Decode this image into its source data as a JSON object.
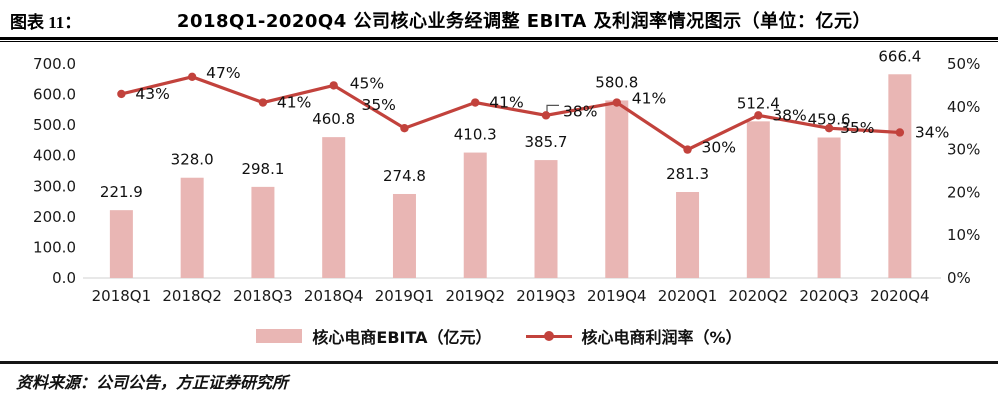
{
  "figure": {
    "label": "图表 11：",
    "title": "2018Q1-2020Q4 公司核心业务经调整 EBITA 及利润率情况图示（单位：亿元）",
    "source": "资料来源：公司公告，方正证券研究所"
  },
  "colors": {
    "bar": "#e9b6b4",
    "line": "#c2423c",
    "axis_line": "#d9d9d9",
    "text": "#1a1a1a"
  },
  "legend": [
    {
      "swatch": "bar",
      "label": "核心电商EBITA（亿元）"
    },
    {
      "swatch": "line",
      "label": "核心电商利润率（%）"
    }
  ],
  "chart_data": {
    "type": "bar+line",
    "title": "2018Q1-2020Q4 公司核心业务经调整 EBITA 及利润率情况图示（单位：亿元）",
    "categories": [
      "2018Q1",
      "2018Q2",
      "2018Q3",
      "2018Q4",
      "2019Q1",
      "2019Q2",
      "2019Q3",
      "2019Q4",
      "2020Q1",
      "2020Q2",
      "2020Q3",
      "2020Q4"
    ],
    "series": [
      {
        "name": "核心电商EBITA（亿元）",
        "type": "bar",
        "axis": "left",
        "values": [
          221.9,
          328.0,
          298.1,
          460.8,
          274.8,
          410.3,
          385.7,
          580.8,
          281.3,
          512.4,
          459.6,
          666.4
        ]
      },
      {
        "name": "核心电商利润率（%）",
        "type": "line",
        "axis": "right",
        "unit": "%",
        "values": [
          43,
          47,
          41,
          45,
          35,
          41,
          38,
          41,
          30,
          38,
          35,
          34
        ]
      }
    ],
    "left_axis": {
      "min": 0,
      "max": 700,
      "step": 100,
      "tick_labels": [
        "0.0",
        "100.0",
        "200.0",
        "300.0",
        "400.0",
        "500.0",
        "600.0",
        "700.0"
      ]
    },
    "right_axis": {
      "min": 0,
      "max": 50,
      "step": 10,
      "tick_labels": [
        "0%",
        "10%",
        "20%",
        "30%",
        "40%",
        "50%"
      ]
    },
    "grid": false,
    "data_labels": true,
    "legend_position": "bottom"
  }
}
